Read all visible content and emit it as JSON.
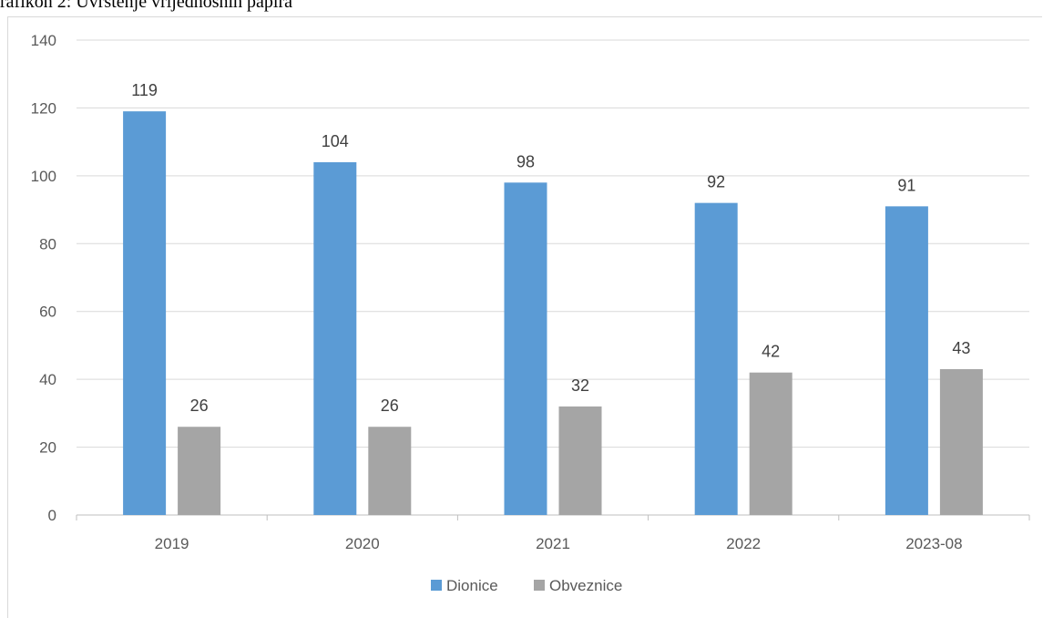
{
  "caption": "rafikon 2: Uvrštenje vrijednosnih papira",
  "chart_data": {
    "type": "bar",
    "title": "",
    "xlabel": "",
    "ylabel": "",
    "categories": [
      "2019",
      "2020",
      "2021",
      "2022",
      "2023-08"
    ],
    "series": [
      {
        "name": "Dionice",
        "color": "#5b9bd5",
        "values": [
          119,
          104,
          98,
          92,
          91
        ]
      },
      {
        "name": "Obveznice",
        "color": "#a5a5a5",
        "values": [
          26,
          26,
          32,
          42,
          43
        ]
      }
    ],
    "ylim": [
      0,
      140
    ],
    "yticks": [
      0,
      20,
      40,
      60,
      80,
      100,
      120,
      140
    ],
    "grid": true,
    "legend_position": "bottom",
    "data_labels": true
  }
}
